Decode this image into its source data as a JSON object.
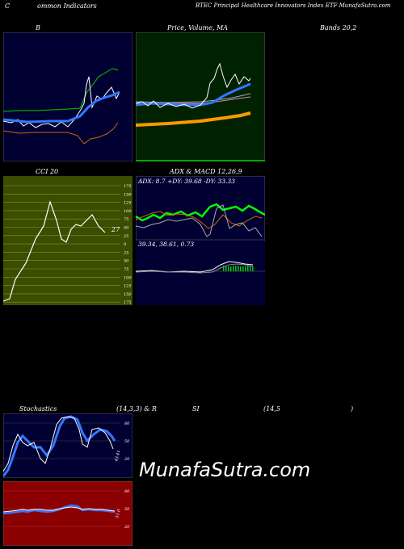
{
  "header": {
    "left": "C",
    "title_a": "ommon Indicators",
    "title_b": "BTEC Principal Healthcare  Innovators Index ETF MunafaSutra.com"
  },
  "row1": {
    "bbands_label": "B",
    "price_label": "Price,  Volume,  MA",
    "bands_label": "Bands 20,2"
  },
  "row2": {
    "cci_label": "CCI 20",
    "adx_label": "ADX  & MACD 12,26,9",
    "adx_values": "ADX: 8.7  +DY: 39.68  -DY: 33.33",
    "macd_values": "39.34,  38.61,  0.73",
    "cci_current": "27",
    "cci_ticks": [
      "175",
      "150",
      "125",
      "100",
      "75",
      "50",
      "25",
      "0",
      "25",
      "50",
      "75",
      "100",
      "125",
      "150",
      "175"
    ]
  },
  "row3": {
    "stoch_label": "Stochastics",
    "stoch_params": "(14,3,3) & R",
    "rsi_label": "SI",
    "rsi_params": "(14,5",
    "rsi_close": ")",
    "stoch_ticks": [
      "80",
      "50",
      "20"
    ],
    "stoch_current": "43.41",
    "rsi_ticks": [
      "80",
      "50",
      "20"
    ],
    "rsi_current": "51.0"
  },
  "watermark": "MunafaSutra.com",
  "colors": {
    "navy": "#000033",
    "dark_green": "#002200",
    "olive": "#3a4d00",
    "maroon": "#8b0000",
    "blue_line": "#3377ff",
    "green_line": "#00cc00",
    "orange_line": "#ff9900",
    "bright_green": "#00ff00"
  }
}
